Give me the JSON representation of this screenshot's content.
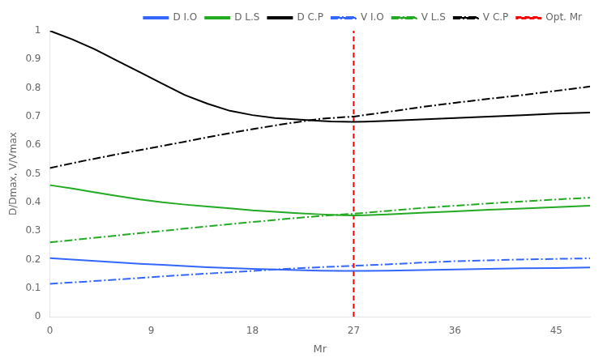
{
  "chart_data": {
    "type": "line",
    "xlabel": "Mr",
    "ylabel": "D/Dmax, V/Vmax",
    "xlim": [
      0,
      48
    ],
    "xticks": [
      0,
      9,
      18,
      27,
      36,
      45
    ],
    "ylim": [
      0,
      1.0
    ],
    "yticks": [
      0,
      0.1,
      0.2,
      0.3,
      0.4,
      0.5,
      0.6,
      0.7,
      0.8,
      0.9,
      1
    ],
    "grid": false,
    "legend": "upper right",
    "series": [
      {
        "name": "D I.O",
        "color": "#3366FF",
        "line_style": "solid",
        "x": [
          0,
          2,
          4,
          6,
          8,
          10,
          12,
          14,
          16,
          18,
          20,
          22,
          24,
          26,
          27,
          28,
          30,
          33,
          36,
          39,
          42,
          45,
          48
        ],
        "values": [
          0.205,
          0.2,
          0.195,
          0.19,
          0.185,
          0.181,
          0.177,
          0.173,
          0.17,
          0.167,
          0.165,
          0.163,
          0.161,
          0.16,
          0.16,
          0.16,
          0.161,
          0.163,
          0.165,
          0.167,
          0.169,
          0.17,
          0.172
        ]
      },
      {
        "name": "D L.S",
        "color": "#22AA22",
        "line_style": "solid",
        "x": [
          0,
          2,
          4,
          6,
          8,
          10,
          12,
          14,
          16,
          18,
          20,
          22,
          24,
          26,
          27,
          28,
          30,
          33,
          36,
          39,
          42,
          45,
          48
        ],
        "values": [
          0.46,
          0.448,
          0.435,
          0.422,
          0.41,
          0.4,
          0.392,
          0.385,
          0.379,
          0.372,
          0.367,
          0.362,
          0.358,
          0.355,
          0.354,
          0.355,
          0.358,
          0.363,
          0.368,
          0.374,
          0.378,
          0.383,
          0.388
        ]
      },
      {
        "name": "D C.P",
        "color": "#000000",
        "line_style": "solid",
        "x": [
          0,
          2,
          4,
          6,
          8,
          10,
          12,
          14,
          16,
          18,
          20,
          22,
          24,
          25,
          26,
          27,
          28,
          30,
          33,
          36,
          39,
          42,
          45,
          48
        ],
        "values": [
          1.0,
          0.97,
          0.935,
          0.895,
          0.855,
          0.815,
          0.775,
          0.745,
          0.72,
          0.705,
          0.695,
          0.69,
          0.685,
          0.683,
          0.682,
          0.681,
          0.682,
          0.685,
          0.69,
          0.695,
          0.7,
          0.705,
          0.71,
          0.714
        ]
      },
      {
        "name": "V I.O",
        "color": "#3366FF",
        "line_style": "dashdot",
        "x": [
          0,
          3,
          6,
          9,
          12,
          15,
          18,
          21,
          24,
          27,
          30,
          33,
          36,
          39,
          42,
          45,
          48
        ],
        "values": [
          0.115,
          0.122,
          0.13,
          0.138,
          0.146,
          0.153,
          0.16,
          0.167,
          0.173,
          0.178,
          0.183,
          0.189,
          0.194,
          0.197,
          0.2,
          0.202,
          0.204
        ]
      },
      {
        "name": "V L.S",
        "color": "#22AA22",
        "line_style": "dashdot",
        "x": [
          0,
          3,
          6,
          9,
          12,
          15,
          18,
          21,
          24,
          27,
          30,
          33,
          36,
          39,
          42,
          45,
          48
        ],
        "values": [
          0.26,
          0.272,
          0.284,
          0.296,
          0.308,
          0.32,
          0.331,
          0.342,
          0.352,
          0.36,
          0.37,
          0.38,
          0.388,
          0.396,
          0.403,
          0.41,
          0.416
        ]
      },
      {
        "name": "V C.P",
        "color": "#000000",
        "line_style": "dashdot",
        "x": [
          0,
          3,
          6,
          9,
          12,
          15,
          18,
          21,
          24,
          27,
          30,
          33,
          36,
          39,
          42,
          45,
          48
        ],
        "values": [
          0.52,
          0.545,
          0.568,
          0.59,
          0.612,
          0.635,
          0.656,
          0.675,
          0.692,
          0.7,
          0.716,
          0.733,
          0.748,
          0.762,
          0.775,
          0.79,
          0.805
        ]
      }
    ],
    "vlines": [
      {
        "name": "Opt. Mr",
        "x": 27,
        "color": "red",
        "line_style": "dashed"
      }
    ]
  }
}
